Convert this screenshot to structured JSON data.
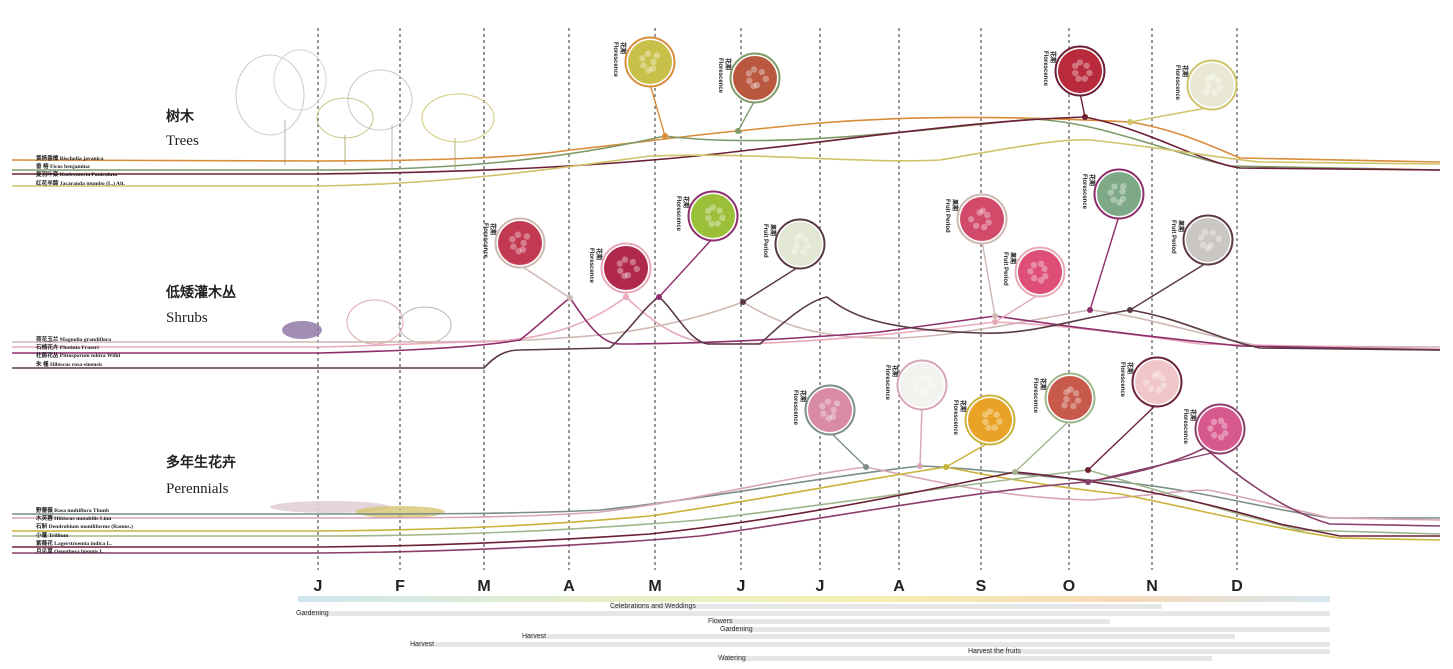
{
  "months": [
    "J",
    "F",
    "M",
    "A",
    "M",
    "J",
    "J",
    "A",
    "S",
    "O",
    "N",
    "D"
  ],
  "groups": [
    {
      "id": "trees",
      "label_cn": "树木",
      "label_en": "Trees",
      "species": [
        {
          "name": "黄杨香樟 Bischofia javanica",
          "color": "#d98c3a"
        },
        {
          "name": "垂 榕 Ficus benjamina",
          "color": "#7f9a68"
        },
        {
          "name": "复羽叶栾 Koelreuteria Paniculata",
          "color": "#6b1f35"
        },
        {
          "name": "红花羊蹄 Jacaranda mumbo (L.) Alt.",
          "color": "#cfc36a"
        }
      ],
      "photos": [
        {
          "tags": [
            "Florescence",
            "花期"
          ],
          "color": "#c9c04a"
        },
        {
          "tags": [
            "Florescence",
            "花期"
          ],
          "color": "#b9573f"
        },
        {
          "tags": [
            "Florescence",
            "花期"
          ],
          "color": "#b82a3c"
        },
        {
          "tags": [
            "Florescence",
            "花期"
          ],
          "color": "#e8e8d4"
        }
      ]
    },
    {
      "id": "shrubs",
      "label_cn": "低矮灌木丛",
      "label_en": "Shrubs",
      "species": [
        {
          "name": "荷花玉兰 Magnolia grandiflora",
          "color": "#cdb8b2"
        },
        {
          "name": "石楠花卉 Photinia Fraseri",
          "color": "#e8a9bb"
        },
        {
          "name": "杜鹃花丛 Pittosporum tobira Willd",
          "color": "#8e2d6b"
        },
        {
          "name": "朱 槿 Hibiscus rosa-sinensis",
          "color": "#5a3a44"
        }
      ],
      "photos": [
        {
          "tags": [
            "Florescence",
            "花期"
          ],
          "color": "#c23a52"
        },
        {
          "tags": [
            "Florescence",
            "花期"
          ],
          "color": "#b0284c"
        },
        {
          "tags": [
            "Florescence",
            "花期"
          ],
          "color": "#9cbf3a"
        },
        {
          "tags": [
            "Fruit Period",
            "果期"
          ],
          "color": "#e3e6d2"
        },
        {
          "tags": [
            "Fruit Period",
            "果期"
          ],
          "color": "#d14a6a"
        },
        {
          "tags": [
            "Fruit Period",
            "果期"
          ],
          "color": "#de4e76"
        },
        {
          "tags": [
            "Florescence",
            "花期"
          ],
          "color": "#7ea986"
        },
        {
          "tags": [
            "Fruit Period",
            "果期"
          ],
          "color": "#c9c6c4"
        }
      ]
    },
    {
      "id": "perennials",
      "label_cn": "多年生花卉",
      "label_en": "Perennials",
      "species": [
        {
          "name": "野蔷薇 Rosa multiflora Thunb",
          "color": "#7c8e86"
        },
        {
          "name": "木芙蓉 Hibiscus mutabilis Linn",
          "color": "#d8a6b6"
        },
        {
          "name": "石斛 Dendrobium moniliforme (Ramos.)",
          "color": "#c9b23a"
        },
        {
          "name": "小蓬 Trillium",
          "color": "#9fb58a"
        },
        {
          "name": "紫薇花 Lagerstroemia indica L.",
          "color": "#6b2036"
        },
        {
          "name": "月见草 Oenothera biennis L.",
          "color": "#8a3e6a"
        }
      ],
      "photos": [
        {
          "tags": [
            "Florescence",
            "花期"
          ],
          "color": "#d98aa6"
        },
        {
          "tags": [
            "Florescence",
            "花期"
          ],
          "color": "#f2f2ee"
        },
        {
          "tags": [
            "Florescence",
            "花期"
          ],
          "color": "#e8a326"
        },
        {
          "tags": [
            "Florescence",
            "花期"
          ],
          "color": "#c75a4a"
        },
        {
          "tags": [
            "Florescence",
            "花期"
          ],
          "color": "#f0c6c8"
        },
        {
          "tags": [
            "Florescence",
            "花期"
          ],
          "color": "#d7588c"
        }
      ]
    }
  ],
  "activities": [
    {
      "label": "Celebrations and Weddings"
    },
    {
      "label": "Gardening"
    },
    {
      "label": "Flowers"
    },
    {
      "label": "Gardening"
    },
    {
      "label": "Harvest"
    },
    {
      "label": "Harvest"
    },
    {
      "label": "Harvest the fruits"
    },
    {
      "label": "Watering"
    }
  ]
}
